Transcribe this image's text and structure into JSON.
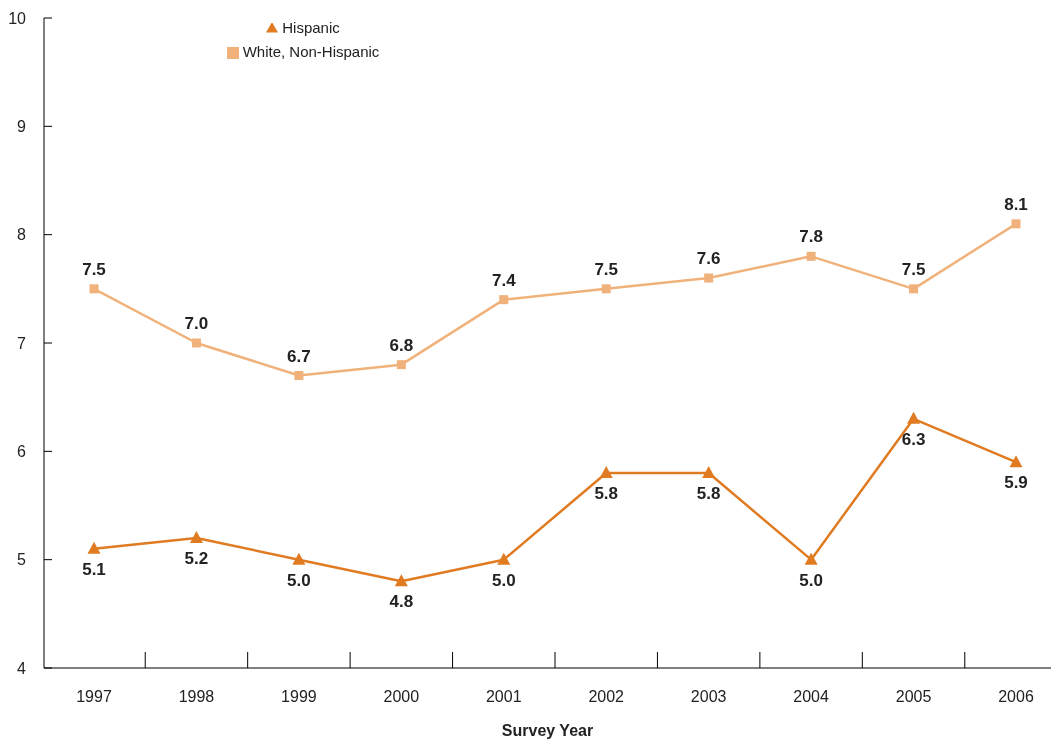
{
  "chart_data": {
    "type": "line",
    "xlabel": "Survey Year",
    "categories": [
      "1997",
      "1998",
      "1999",
      "2000",
      "2001",
      "2002",
      "2003",
      "2004",
      "2005",
      "2006"
    ],
    "series": [
      {
        "name": "White, Non-Hispanic",
        "color": "#f0b27a",
        "marker": "square",
        "values": [
          7.5,
          7.0,
          6.7,
          6.8,
          7.4,
          7.5,
          7.6,
          7.8,
          7.5,
          8.1
        ],
        "value_labels": [
          "7.5",
          "7.0",
          "6.7",
          "6.8",
          "7.4",
          "7.5",
          "7.6",
          "7.8",
          "7.5",
          "8.1"
        ]
      },
      {
        "name": "Hispanic",
        "color": "#e07b22",
        "marker": "triangle",
        "values": [
          5.1,
          5.2,
          5.0,
          4.8,
          5.0,
          5.8,
          5.8,
          5.0,
          6.3,
          5.9
        ],
        "value_labels": [
          "5.1",
          "5.2",
          "5.0",
          "4.8",
          "5.0",
          "5.8",
          "5.8",
          "5.0",
          "6.3",
          "5.9"
        ]
      }
    ],
    "ylim": [
      4,
      10
    ],
    "yticks": [
      4,
      5,
      6,
      7,
      8,
      9,
      10
    ],
    "legend": "top left",
    "grid": false,
    "data_labels": true,
    "line_style": "solid"
  }
}
